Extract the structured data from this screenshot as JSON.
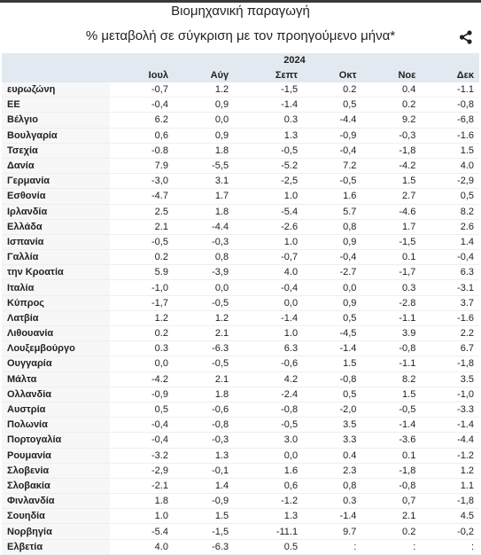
{
  "header": {
    "title": "Βιομηχανική παραγωγή",
    "subtitle": "% μεταβολή σε σύγκριση με τον προηγούμενο μήνα*"
  },
  "table": {
    "year": "2024",
    "columns": [
      "Ιουλ",
      "Αύγ",
      "Σεπτ",
      "Οκτ",
      "Νοε",
      "Δεκ"
    ],
    "rows": [
      [
        "ευρωζώνη",
        "-0,7",
        "1.2",
        "-1,5",
        "0.2",
        "0.4",
        "-1.1"
      ],
      [
        "ΕΕ",
        "-0,4",
        "0,9",
        "-1.4",
        "0,5",
        "0.2",
        "-0,8"
      ],
      [
        "Βέλγιο",
        "6.2",
        "0,0",
        "0.3",
        "-4.4",
        "9.2",
        "-6,8"
      ],
      [
        "Βουλγαρία",
        "0,6",
        "0,9",
        "1.3",
        "-0,9",
        "-0,3",
        "-1.6"
      ],
      [
        "Τσεχία",
        "-0.8",
        "1.8",
        "-0,5",
        "-0,4",
        "-1,8",
        "1.5"
      ],
      [
        "Δανία",
        "7.9",
        "-5,5",
        "-5.2",
        "7.2",
        "-4.2",
        "4.0"
      ],
      [
        "Γερμανία",
        "-3,0",
        "3.1",
        "-2,5",
        "-0,5",
        "1.5",
        "-2,9"
      ],
      [
        "Εσθονία",
        "-4.7",
        "1.7",
        "1.0",
        "1.6",
        "2.7",
        "0,5"
      ],
      [
        "Ιρλανδία",
        "2.5",
        "1.8",
        "-5.4",
        "5.7",
        "-4.6",
        "8.2"
      ],
      [
        "Ελλάδα",
        "2.1",
        "-4.4",
        "-2.6",
        "0,8",
        "1.7",
        "2.6"
      ],
      [
        "Ισπανία",
        "-0,5",
        "-0,3",
        "1.0",
        "0,9",
        "-1,5",
        "1.4"
      ],
      [
        "Γαλλία",
        "0.2",
        "0,8",
        "-0,7",
        "-0,4",
        "0.1",
        "-0,4"
      ],
      [
        "την Κροατία",
        "5.9",
        "-3,9",
        "4.0",
        "-2.7",
        "-1,7",
        "6.3"
      ],
      [
        "Ιταλία",
        "-1,0",
        "0,0",
        "-0,4",
        "0,0",
        "0.3",
        "-3.1"
      ],
      [
        "Κύπρος",
        "-1,7",
        "-0,5",
        "0,0",
        "0,9",
        "-2.8",
        "3.7"
      ],
      [
        "Λατβία",
        "1.2",
        "1.2",
        "-1.4",
        "0,5",
        "-1.1",
        "-1.6"
      ],
      [
        "Λιθουανία",
        "0.2",
        "2.1",
        "1.0",
        "-4,5",
        "3.9",
        "2.2"
      ],
      [
        "Λουξεμβούργο",
        "0.3",
        "-6.3",
        "6.3",
        "-1.4",
        "-0,8",
        "6.7"
      ],
      [
        "Ουγγαρία",
        "0,0",
        "-0,5",
        "-0,6",
        "1.5",
        "-1.1",
        "-1,8"
      ],
      [
        "Μάλτα",
        "-4.2",
        "2.1",
        "4.2",
        "-0,8",
        "8.2",
        "3.5"
      ],
      [
        "Ολλανδία",
        "-0,9",
        "1.8",
        "-2.4",
        "0,5",
        "1.5",
        "-1,0"
      ],
      [
        "Αυστρία",
        "0,5",
        "-0,6",
        "-0,8",
        "-2,0",
        "-0,5",
        "-3.3"
      ],
      [
        "Πολωνία",
        "-0,4",
        "-0,8",
        "-0,5",
        "3.5",
        "-1.4",
        "-1.4"
      ],
      [
        "Πορτογαλία",
        "-0,4",
        "-0,3",
        "3.0",
        "3.3",
        "-3.6",
        "-4.4"
      ],
      [
        "Ρουμανία",
        "-3.2",
        "1.3",
        "0,0",
        "0.4",
        "0.1",
        "-1.2"
      ],
      [
        "Σλοβενία",
        "-2,9",
        "-0,1",
        "1.6",
        "2.3",
        "-1,8",
        "1.2"
      ],
      [
        "Σλοβακία",
        "-2.1",
        "1.4",
        "0,6",
        "0,8",
        "-0,8",
        "1.1"
      ],
      [
        "Φινλανδία",
        "1.8",
        "-0,9",
        "-1.2",
        "0.3",
        "0,7",
        "-1,8"
      ],
      [
        "Σουηδία",
        "1.0",
        "1.5",
        "1.3",
        "-1.4",
        "2.1",
        "4.5"
      ],
      [
        "Νορβηγία",
        "-5.4",
        "-1,5",
        "-11.1",
        "9.7",
        "0.2",
        "-0,2"
      ],
      [
        "Ελβετία",
        "4.0",
        "-6.3",
        "0.5",
        ":",
        ":",
        ":"
      ]
    ]
  }
}
